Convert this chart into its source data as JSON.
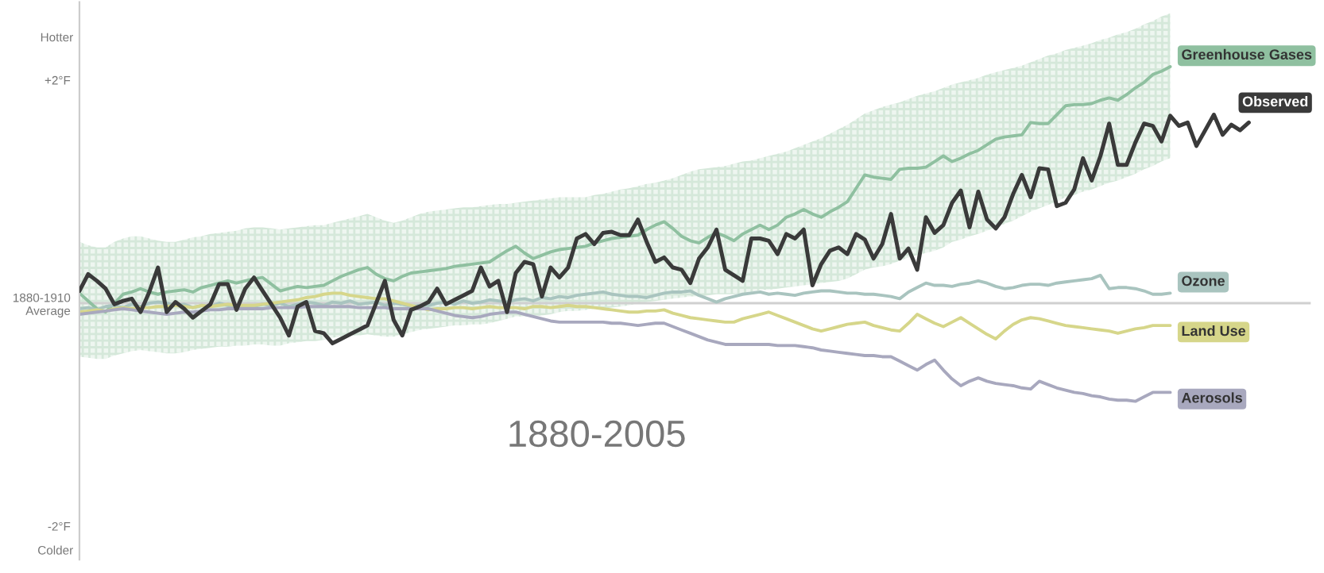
{
  "chart_data": {
    "type": "line",
    "annotations": [
      "Hotter",
      "Colder",
      "1880-2005"
    ],
    "categories": [
      null,
      null,
      null,
      null,
      null,
      null,
      null,
      null,
      null,
      null,
      null,
      null,
      null,
      null,
      null,
      null,
      null,
      null,
      null,
      null,
      null,
      null,
      null,
      null,
      null,
      null,
      null,
      null,
      null,
      null,
      null,
      null,
      null,
      null,
      null,
      null,
      null,
      null,
      null,
      null,
      null,
      null,
      null,
      null,
      null,
      null,
      null,
      null,
      null,
      null,
      null,
      null,
      null,
      null,
      null,
      null,
      null,
      null,
      null,
      null,
      null,
      null,
      null,
      null,
      null,
      null,
      null,
      null,
      null,
      null,
      null,
      null,
      null,
      null,
      null,
      null,
      null,
      null,
      null,
      null,
      null,
      null,
      null,
      null,
      null,
      null,
      null,
      null,
      null,
      null,
      null,
      null,
      null,
      null,
      null,
      null,
      null,
      null,
      null,
      null,
      null,
      null,
      null,
      null,
      null,
      null,
      null,
      null,
      null,
      null,
      null,
      null,
      null,
      null,
      null,
      null,
      null,
      null,
      null,
      null,
      null,
      null,
      null,
      null,
      null,
      null,
      null,
      null,
      null,
      null,
      null,
      null,
      null,
      null,
      null
    ],
    "series": [
      {
        "name": "Greenhouse Gases",
        "color": "#8fc0a0",
        "values": [
          0.09,
          0.02,
          -0.05,
          -0.08,
          0.0,
          0.08,
          0.1,
          0.13,
          0.1,
          0.08,
          0.1,
          0.11,
          0.12,
          0.1,
          0.14,
          0.16,
          0.18,
          0.2,
          0.18,
          0.2,
          0.22,
          0.23,
          0.17,
          0.11,
          0.13,
          0.15,
          0.14,
          0.15,
          0.16,
          0.2,
          0.24,
          0.27,
          0.3,
          0.32,
          0.26,
          0.22,
          0.2,
          0.24,
          0.27,
          0.28,
          0.29,
          0.3,
          0.31,
          0.33,
          0.34,
          0.35,
          0.36,
          0.37,
          0.42,
          0.47,
          0.51,
          0.45,
          0.4,
          0.43,
          0.46,
          0.48,
          0.49,
          0.5,
          0.51,
          0.54,
          0.56,
          0.58,
          0.59,
          0.6,
          0.61,
          0.66,
          0.7,
          0.73,
          0.67,
          0.6,
          0.56,
          0.54,
          0.59,
          0.63,
          0.6,
          0.56,
          0.62,
          0.66,
          0.7,
          0.66,
          0.7,
          0.77,
          0.8,
          0.84,
          0.8,
          0.77,
          0.82,
          0.86,
          0.91,
          1.03,
          1.15,
          1.13,
          1.12,
          1.11,
          1.2,
          1.21,
          1.21,
          1.22,
          1.27,
          1.32,
          1.27,
          1.3,
          1.34,
          1.37,
          1.42,
          1.47,
          1.49,
          1.5,
          1.51,
          1.62,
          1.61,
          1.61,
          1.69,
          1.77,
          1.78,
          1.78,
          1.79,
          1.82,
          1.84,
          1.82,
          1.87,
          1.93,
          1.98,
          2.05,
          2.08,
          2.12,
          null,
          null,
          null,
          null,
          null,
          null,
          null,
          null,
          null
        ],
        "upper": [
          0.55,
          0.52,
          0.5,
          0.5,
          0.55,
          0.58,
          0.6,
          0.6,
          0.58,
          0.56,
          0.55,
          0.55,
          0.57,
          0.59,
          0.6,
          0.62,
          0.63,
          0.64,
          0.65,
          0.67,
          0.68,
          0.68,
          0.67,
          0.66,
          0.67,
          0.68,
          0.69,
          0.7,
          0.7,
          0.72,
          0.74,
          0.76,
          0.78,
          0.8,
          0.77,
          0.74,
          0.72,
          0.74,
          0.77,
          0.8,
          0.82,
          0.83,
          0.84,
          0.85,
          0.86,
          0.86,
          0.87,
          0.88,
          0.89,
          0.89,
          0.9,
          0.91,
          0.92,
          0.93,
          0.94,
          0.95,
          0.95,
          0.95,
          0.95,
          0.97,
          0.98,
          1.0,
          1.02,
          1.03,
          1.05,
          1.07,
          1.08,
          1.1,
          1.12,
          1.15,
          1.18,
          1.2,
          1.21,
          1.22,
          1.23,
          1.25,
          1.27,
          1.28,
          1.3,
          1.32,
          1.34,
          1.36,
          1.39,
          1.42,
          1.45,
          1.48,
          1.52,
          1.56,
          1.6,
          1.65,
          1.7,
          1.73,
          1.76,
          1.78,
          1.8,
          1.83,
          1.86,
          1.88,
          1.9,
          1.93,
          1.96,
          1.98,
          2.0,
          2.02,
          2.05,
          2.07,
          2.09,
          2.11,
          2.13,
          2.16,
          2.19,
          2.22,
          2.24,
          2.27,
          2.29,
          2.31,
          2.33,
          2.36,
          2.38,
          2.41,
          2.43,
          2.46,
          2.5,
          2.53,
          2.57,
          2.6,
          null,
          null,
          null,
          null,
          null,
          null,
          null,
          null,
          null
        ],
        "lower": [
          -0.48,
          -0.49,
          -0.5,
          -0.5,
          -0.47,
          -0.45,
          -0.43,
          -0.42,
          -0.43,
          -0.44,
          -0.45,
          -0.45,
          -0.44,
          -0.42,
          -0.41,
          -0.4,
          -0.39,
          -0.39,
          -0.38,
          -0.38,
          -0.37,
          -0.37,
          -0.38,
          -0.38,
          -0.36,
          -0.35,
          -0.34,
          -0.34,
          -0.33,
          -0.31,
          -0.3,
          -0.29,
          -0.29,
          -0.28,
          -0.29,
          -0.3,
          -0.3,
          -0.28,
          -0.26,
          -0.24,
          -0.23,
          -0.22,
          -0.21,
          -0.2,
          -0.2,
          -0.19,
          -0.19,
          -0.18,
          -0.16,
          -0.14,
          -0.12,
          -0.12,
          -0.12,
          -0.11,
          -0.1,
          -0.08,
          -0.07,
          -0.07,
          -0.06,
          -0.05,
          -0.05,
          -0.04,
          -0.03,
          -0.02,
          0.0,
          0.01,
          0.02,
          0.03,
          0.04,
          0.05,
          0.06,
          0.06,
          0.07,
          0.08,
          0.08,
          0.08,
          0.09,
          0.1,
          0.12,
          0.12,
          0.13,
          0.14,
          0.15,
          0.16,
          0.17,
          0.18,
          0.19,
          0.2,
          0.22,
          0.26,
          0.3,
          0.32,
          0.33,
          0.35,
          0.38,
          0.41,
          0.43,
          0.45,
          0.47,
          0.5,
          0.55,
          0.57,
          0.6,
          0.62,
          0.65,
          0.68,
          0.71,
          0.74,
          0.78,
          0.82,
          0.85,
          0.88,
          0.91,
          0.95,
          0.97,
          1.0,
          1.02,
          1.05,
          1.08,
          1.1,
          1.13,
          1.16,
          1.2,
          1.23,
          1.27,
          1.3,
          null,
          null,
          null,
          null,
          null,
          null,
          null,
          null,
          null
        ]
      },
      {
        "name": "Observed",
        "color": "#3a3a3a",
        "values": [
          0.11,
          0.26,
          0.2,
          0.13,
          -0.01,
          0.02,
          0.04,
          -0.08,
          0.1,
          0.32,
          -0.08,
          0.01,
          -0.05,
          -0.13,
          -0.07,
          -0.01,
          0.17,
          0.17,
          -0.06,
          0.13,
          0.23,
          0.11,
          -0.01,
          -0.13,
          -0.29,
          -0.03,
          0.01,
          -0.25,
          -0.27,
          -0.36,
          -0.32,
          -0.28,
          -0.24,
          -0.2,
          0.0,
          0.2,
          -0.15,
          -0.29,
          -0.06,
          -0.03,
          0.01,
          0.13,
          -0.01,
          0.03,
          0.07,
          0.11,
          0.32,
          0.15,
          0.2,
          -0.08,
          0.27,
          0.37,
          0.35,
          0.06,
          0.32,
          0.23,
          0.32,
          0.58,
          0.62,
          0.53,
          0.63,
          0.64,
          0.61,
          0.61,
          0.75,
          0.55,
          0.37,
          0.41,
          0.32,
          0.3,
          0.18,
          0.4,
          0.5,
          0.66,
          0.3,
          0.25,
          0.2,
          0.58,
          0.58,
          0.56,
          0.44,
          0.62,
          0.58,
          0.66,
          0.16,
          0.35,
          0.47,
          0.5,
          0.44,
          0.62,
          0.57,
          0.4,
          0.53,
          0.8,
          0.4,
          0.49,
          0.3,
          0.77,
          0.63,
          0.7,
          0.9,
          1.01,
          0.68,
          1.0,
          0.75,
          0.67,
          0.77,
          0.98,
          1.15,
          0.95,
          1.21,
          1.2,
          0.87,
          0.9,
          1.02,
          1.3,
          1.1,
          1.32,
          1.61,
          1.24,
          1.24,
          1.44,
          1.61,
          1.59,
          1.45,
          1.68,
          1.59,
          1.62,
          1.41,
          1.55,
          1.69,
          1.51,
          1.6,
          1.55,
          1.62
        ]
      },
      {
        "name": "Ozone",
        "color": "#a9c4bf",
        "values": [
          -0.05,
          -0.04,
          -0.06,
          -0.03,
          -0.02,
          -0.04,
          -0.01,
          -0.03,
          0.0,
          0.01,
          0.0,
          -0.02,
          -0.01,
          -0.04,
          -0.02,
          -0.03,
          0.0,
          -0.02,
          -0.04,
          -0.03,
          -0.03,
          -0.01,
          -0.02,
          0.0,
          -0.03,
          -0.01,
          0.01,
          0.0,
          -0.02,
          0.01,
          0.0,
          0.02,
          -0.01,
          0.0,
          0.01,
          -0.02,
          0.0,
          -0.01,
          -0.03,
          -0.02,
          -0.02,
          0.0,
          0.01,
          -0.01,
          0.02,
          0.0,
          0.01,
          0.03,
          0.02,
          0.01,
          0.03,
          0.04,
          0.02,
          0.05,
          0.04,
          0.06,
          0.05,
          0.07,
          0.08,
          0.09,
          0.1,
          0.08,
          0.07,
          0.06,
          0.06,
          0.05,
          0.07,
          0.09,
          0.1,
          0.1,
          0.11,
          0.07,
          0.04,
          0.01,
          0.04,
          0.06,
          0.08,
          0.09,
          0.1,
          0.08,
          0.09,
          0.08,
          0.07,
          0.09,
          0.1,
          0.11,
          0.11,
          0.1,
          0.09,
          0.09,
          0.08,
          0.08,
          0.07,
          0.06,
          0.04,
          0.1,
          0.14,
          0.18,
          0.16,
          0.16,
          0.15,
          0.17,
          0.18,
          0.2,
          0.18,
          0.15,
          0.13,
          0.14,
          0.16,
          0.17,
          0.17,
          0.16,
          0.18,
          0.19,
          0.2,
          0.21,
          0.22,
          0.25,
          0.13,
          0.14,
          0.14,
          0.13,
          0.11,
          0.08,
          0.08,
          0.09,
          null,
          null,
          null,
          null,
          null,
          null,
          null,
          null,
          null
        ]
      },
      {
        "name": "Land Use",
        "color": "#d6d68a",
        "values": [
          -0.08,
          -0.07,
          -0.06,
          -0.07,
          -0.05,
          -0.04,
          -0.05,
          -0.04,
          -0.04,
          -0.03,
          -0.03,
          -0.02,
          -0.03,
          -0.04,
          -0.02,
          -0.03,
          -0.02,
          -0.01,
          -0.02,
          -0.02,
          -0.02,
          -0.01,
          0.0,
          0.01,
          0.02,
          0.03,
          0.05,
          0.06,
          0.08,
          0.09,
          0.09,
          0.07,
          0.06,
          0.05,
          0.04,
          0.04,
          0.02,
          0.0,
          -0.02,
          -0.04,
          -0.06,
          -0.05,
          -0.05,
          -0.04,
          -0.04,
          -0.05,
          -0.04,
          -0.03,
          -0.04,
          -0.04,
          -0.04,
          -0.05,
          -0.03,
          -0.03,
          -0.04,
          -0.03,
          -0.02,
          -0.03,
          -0.03,
          -0.04,
          -0.05,
          -0.06,
          -0.07,
          -0.08,
          -0.08,
          -0.07,
          -0.07,
          -0.06,
          -0.09,
          -0.11,
          -0.13,
          -0.14,
          -0.15,
          -0.16,
          -0.17,
          -0.17,
          -0.14,
          -0.12,
          -0.1,
          -0.08,
          -0.11,
          -0.14,
          -0.17,
          -0.2,
          -0.23,
          -0.25,
          -0.23,
          -0.21,
          -0.19,
          -0.18,
          -0.17,
          -0.2,
          -0.22,
          -0.24,
          -0.25,
          -0.18,
          -0.1,
          -0.14,
          -0.18,
          -0.21,
          -0.17,
          -0.13,
          -0.18,
          -0.23,
          -0.28,
          -0.32,
          -0.25,
          -0.19,
          -0.15,
          -0.13,
          -0.14,
          -0.16,
          -0.18,
          -0.2,
          -0.21,
          -0.22,
          -0.23,
          -0.24,
          -0.25,
          -0.27,
          -0.25,
          -0.23,
          -0.22,
          -0.2,
          -0.2,
          -0.2,
          null,
          null,
          null,
          null,
          null,
          null,
          null,
          null,
          null
        ]
      },
      {
        "name": "Aerosols",
        "color": "#a8a8be",
        "values": [
          -0.1,
          -0.09,
          -0.08,
          -0.07,
          -0.06,
          -0.05,
          -0.06,
          -0.07,
          -0.08,
          -0.09,
          -0.1,
          -0.09,
          -0.08,
          -0.08,
          -0.07,
          -0.06,
          -0.06,
          -0.05,
          -0.05,
          -0.05,
          -0.05,
          -0.05,
          -0.04,
          -0.04,
          -0.04,
          -0.04,
          -0.03,
          -0.03,
          -0.03,
          -0.03,
          -0.03,
          -0.03,
          -0.04,
          -0.04,
          -0.04,
          -0.04,
          -0.05,
          -0.05,
          -0.05,
          -0.05,
          -0.05,
          -0.07,
          -0.09,
          -0.11,
          -0.12,
          -0.13,
          -0.12,
          -0.1,
          -0.09,
          -0.08,
          -0.08,
          -0.1,
          -0.12,
          -0.14,
          -0.16,
          -0.17,
          -0.17,
          -0.17,
          -0.17,
          -0.17,
          -0.17,
          -0.18,
          -0.18,
          -0.19,
          -0.2,
          -0.19,
          -0.18,
          -0.18,
          -0.21,
          -0.24,
          -0.27,
          -0.3,
          -0.33,
          -0.35,
          -0.37,
          -0.37,
          -0.37,
          -0.37,
          -0.37,
          -0.37,
          -0.38,
          -0.38,
          -0.38,
          -0.39,
          -0.4,
          -0.42,
          -0.43,
          -0.44,
          -0.45,
          -0.46,
          -0.47,
          -0.47,
          -0.48,
          -0.48,
          -0.52,
          -0.56,
          -0.6,
          -0.55,
          -0.51,
          -0.6,
          -0.68,
          -0.74,
          -0.7,
          -0.67,
          -0.7,
          -0.72,
          -0.73,
          -0.74,
          -0.76,
          -0.77,
          -0.7,
          -0.73,
          -0.76,
          -0.78,
          -0.8,
          -0.81,
          -0.83,
          -0.84,
          -0.86,
          -0.87,
          -0.87,
          -0.88,
          -0.84,
          -0.8,
          -0.8,
          -0.8,
          null,
          null,
          null,
          null,
          null,
          null,
          null,
          null,
          null
        ]
      }
    ],
    "ref_lines": [
      {
        "axis": "y",
        "value": 0,
        "color": "#d0d0d0"
      }
    ],
    "ylim": [
      -2.3,
      2.7
    ],
    "yticks": [
      {
        "value": 2,
        "label": "+2°F"
      },
      {
        "value": 0,
        "label": "1880-1910\nAverage"
      },
      {
        "value": -2,
        "label": "-2°F"
      }
    ],
    "tick_labels": "y",
    "grid": false,
    "legend": false,
    "marker": "none",
    "line_style": "solid"
  }
}
